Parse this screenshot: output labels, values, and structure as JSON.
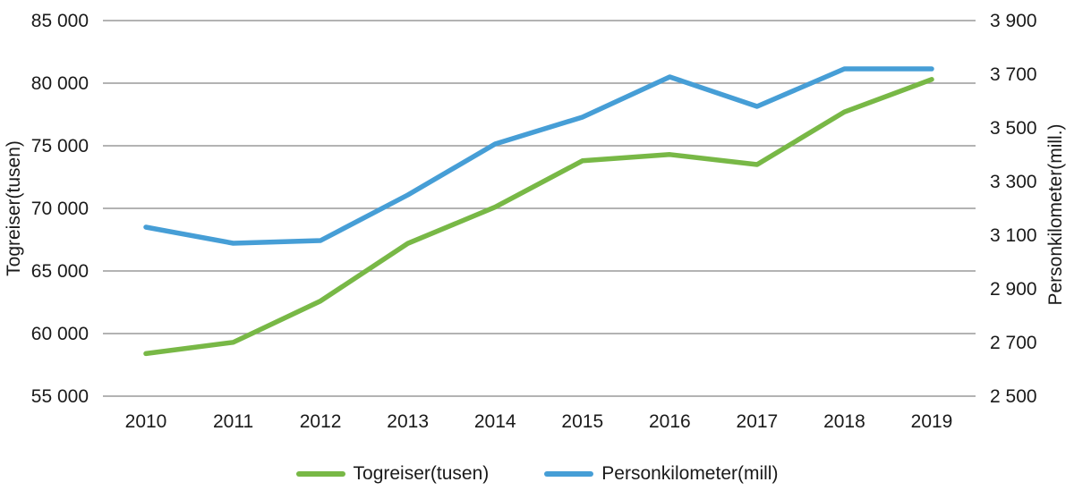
{
  "chart_data": {
    "type": "line",
    "x": [
      "2010",
      "2011",
      "2012",
      "2013",
      "2014",
      "2015",
      "2016",
      "2017",
      "2018",
      "2019"
    ],
    "series": [
      {
        "name": "Togreiser(tusen)",
        "axis": "left",
        "color": "#78b846",
        "values": [
          58400,
          59300,
          62600,
          67200,
          70100,
          73800,
          74300,
          73500,
          77700,
          80300
        ]
      },
      {
        "name": "Personkilometer(mill)",
        "axis": "right",
        "color": "#469ed6",
        "values": [
          3130,
          3070,
          3080,
          3250,
          3440,
          3540,
          3690,
          3580,
          3720,
          3720
        ]
      }
    ],
    "left_axis": {
      "label": "Togreiser(tusen)",
      "min": 55000,
      "max": 85000,
      "step": 5000,
      "tick_labels_top_to_bottom": [
        "85 000",
        "80 000",
        "75 000",
        "70 000",
        "65 000",
        "60 000",
        "55 000"
      ]
    },
    "right_axis": {
      "label": "Personkilometer(mill.)",
      "min": 2500,
      "max": 3900,
      "step": 200,
      "tick_labels_top_to_bottom": [
        "3 900",
        "3 700",
        "3 500",
        "3 300",
        "3 100",
        "2 900",
        "2 700",
        "2 500"
      ]
    },
    "grid": true,
    "legend_position": "bottom",
    "legend": [
      {
        "label": "Togreiser(tusen)",
        "color": "#78b846"
      },
      {
        "label": "Personkilometer(mill)",
        "color": "#469ed6"
      }
    ]
  },
  "colors": {
    "grid_line": "#9a9a9a",
    "text": "#1a1a1a",
    "background": "#ffffff"
  }
}
